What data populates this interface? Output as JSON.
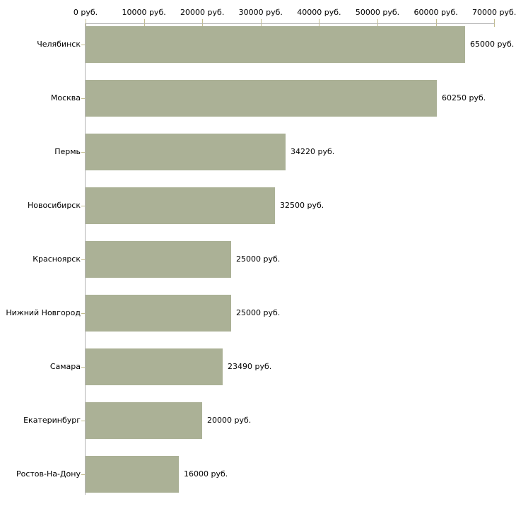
{
  "chart_data": {
    "type": "bar",
    "orientation": "horizontal",
    "title": "",
    "xlabel": "",
    "ylabel": "",
    "unit": "руб.",
    "xlim": [
      0,
      70000
    ],
    "grid": false,
    "legend": "none",
    "categories": [
      "Челябинск",
      "Москва",
      "Пермь",
      "Новосибирск",
      "Красноярск",
      "Нижний Новгород",
      "Самара",
      "Екатеринбург",
      "Ростов-На-Дону"
    ],
    "values": [
      65000,
      60250,
      34220,
      32500,
      25000,
      25000,
      23490,
      20000,
      16000
    ],
    "value_labels": [
      "65000 руб.",
      "60250 руб.",
      "34220 руб.",
      "32500 руб.",
      "25000 руб.",
      "25000 руб.",
      "23490 руб.",
      "20000 руб.",
      "16000 руб."
    ],
    "x_tick_values": [
      0,
      10000,
      20000,
      30000,
      40000,
      50000,
      60000,
      70000
    ],
    "x_tick_labels": [
      "0 руб.",
      "10000 руб.",
      "20000 руб.",
      "30000 руб.",
      "40000 руб.",
      "50000 руб.",
      "60000 руб.",
      "70000 руб."
    ],
    "colors": {
      "bar_fill": "#abb196",
      "axis_line": "#b5b5b5",
      "tick_mark": "#c3bd8e",
      "text": "#000000",
      "background": "#ffffff"
    }
  }
}
